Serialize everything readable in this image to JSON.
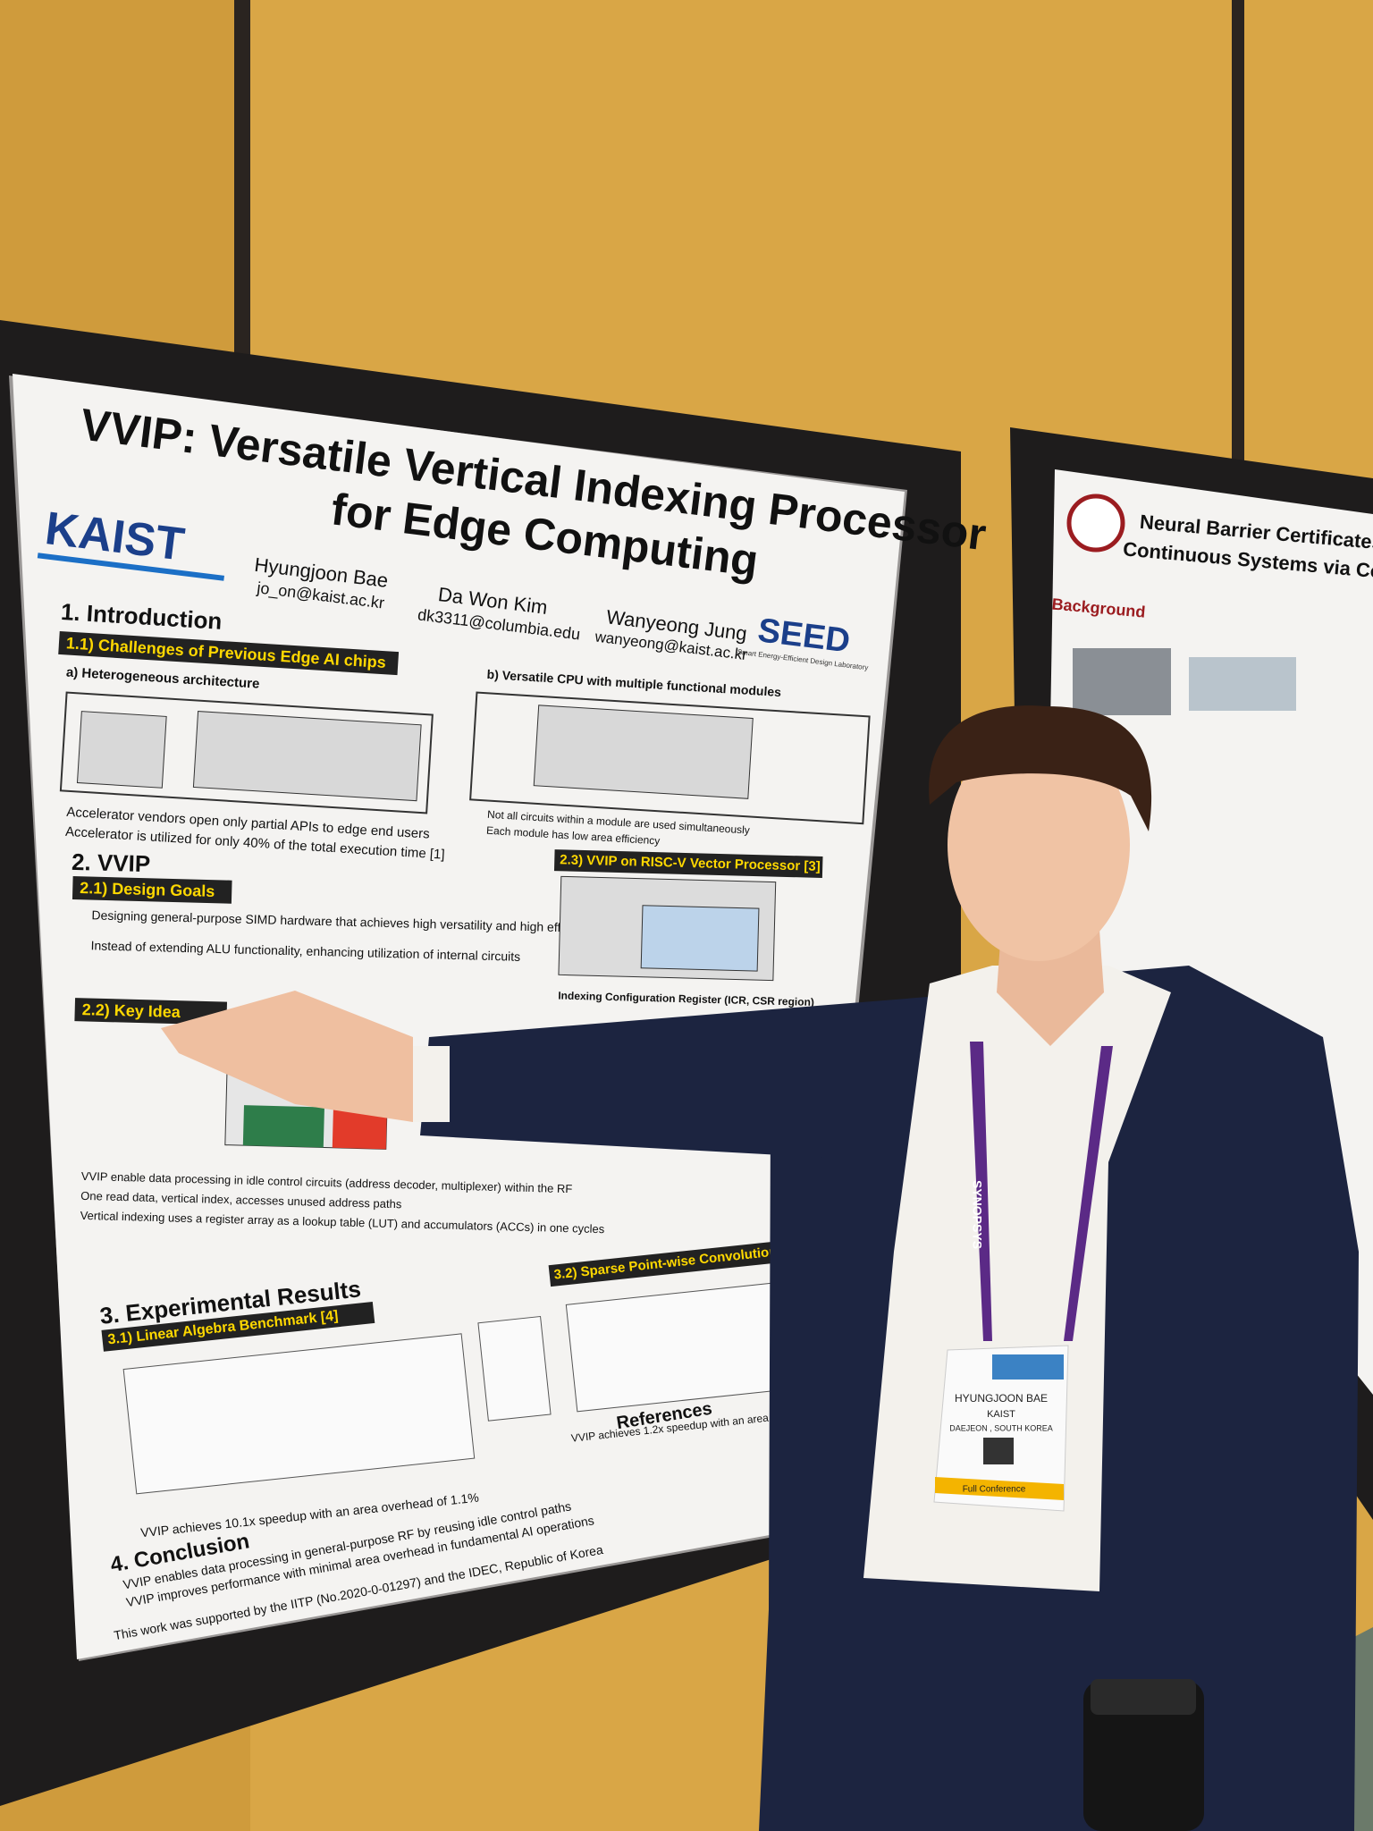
{
  "poster": {
    "title_line1": "VVIP: Versatile Vertical Indexing Processor",
    "title_line2": "for Edge Computing",
    "logo_left": "KAIST",
    "logo_right": "SEED",
    "logo_right_sub": "Smart Energy-Efficient Design Laboratory",
    "authors": [
      {
        "name": "Hyungjoon Bae",
        "email": "jo_on@kaist.ac.kr"
      },
      {
        "name": "Da Won Kim",
        "email": "dk3311@columbia.edu"
      },
      {
        "name": "Wanyeong Jung",
        "email": "wanyeong@kaist.ac.kr"
      }
    ],
    "intro": {
      "heading": "1. Introduction",
      "subheading": "1.1) Challenges of Previous Edge AI chips",
      "panel_a": "a) Heterogeneous architecture",
      "panel_b": "b) Versatile CPU with multiple functional modules",
      "bullets": [
        "Accelerator vendors open only partial APIs to edge end users",
        "Accelerator is utilized for only 40% of the total execution time [1]",
        "Not all circuits within a module are used simultaneously",
        "Each module has low area efficiency"
      ]
    },
    "vvip": {
      "heading": "2. VVIP",
      "goals": "2.1) Design Goals",
      "goal_bullets": [
        "Designing general-purpose SIMD hardware that achieves high versatility and high efficiency with minimal overhead",
        "Instead of extending ALU functionality, enhancing utilization of internal circuits"
      ],
      "key_idea": "2.2) Key Idea",
      "riscv": "2.3) VVIP on RISC-V Vector Processor [3]",
      "icr": "Indexing Configuration Register (ICR, CSR region)",
      "key_bullets": [
        "VVIP enable data processing in idle control circuits (address decoder, multiplexer) within the RF",
        "One read data, vertical index, accesses unused address paths",
        "Vertical indexing uses a register array as a lookup table (LUT) and accumulators (ACCs) in one cycles"
      ]
    },
    "results": {
      "heading": "3. Experimental Results",
      "linear": "3.1) Linear Algebra Benchmark [4]",
      "sparse": "3.2) Sparse Point-wise Convolution",
      "linear_note": "VVIP achieves 10.1x speedup with an area overhead of 1.1%",
      "sparse_note": "VVIP achieves 1.2x speedup with an area overhead"
    },
    "references": "References",
    "conclusion": {
      "heading": "4. Conclusion",
      "bullets": [
        "VVIP enables data processing in general-purpose RF by reusing idle control paths",
        "VVIP improves performance with minimal area overhead in fundamental AI operations"
      ]
    },
    "acknowledgement": "This work was supported by the IITP (No.2020-0-01297) and the IDEC, Republic of Korea"
  },
  "neighbor_poster": {
    "title_line1": "Neural Barrier Certificates Synthes",
    "title_line2": "Continuous Systems via Counterexam",
    "section": "Background"
  },
  "badge": {
    "name": "HYUNGJOON BAE",
    "org": "KAIST",
    "location": "DAEJEON , SOUTH KOREA",
    "ribbon": "Full Conference"
  },
  "lanyard": "SYNOPSYS"
}
